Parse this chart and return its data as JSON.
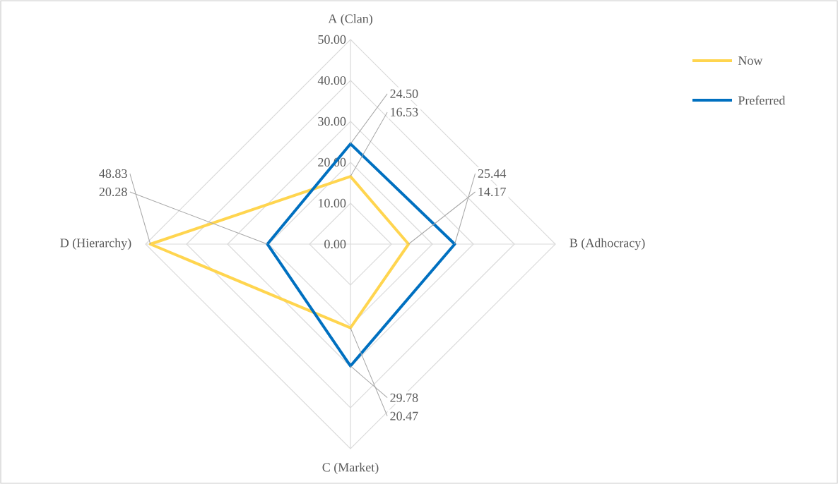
{
  "chart_data": {
    "type": "radar",
    "categories": [
      "A (Clan)",
      "B (Adhocracy)",
      "C (Market)",
      "D (Hierarchy)"
    ],
    "series": [
      {
        "name": "Now",
        "color": "#ffd54f",
        "values": [
          16.53,
          14.17,
          20.47,
          48.83
        ],
        "value_labels": [
          "16.53",
          "14.17",
          "20.47",
          "48.83"
        ]
      },
      {
        "name": "Preferred",
        "color": "#0070c0",
        "values": [
          24.5,
          25.44,
          29.78,
          20.28
        ],
        "value_labels": [
          "24.50",
          "25.44",
          "29.78",
          "20.28"
        ]
      }
    ],
    "ylim": [
      0,
      50
    ],
    "yticks": [
      {
        "value": 0,
        "label": "0.00"
      },
      {
        "value": 10,
        "label": "10.00"
      },
      {
        "value": 20,
        "label": "20.00"
      },
      {
        "value": 30,
        "label": "30.00"
      },
      {
        "value": 40,
        "label": "40.00"
      },
      {
        "value": 50,
        "label": "50.00"
      }
    ],
    "grid": true,
    "legend": "top right"
  }
}
